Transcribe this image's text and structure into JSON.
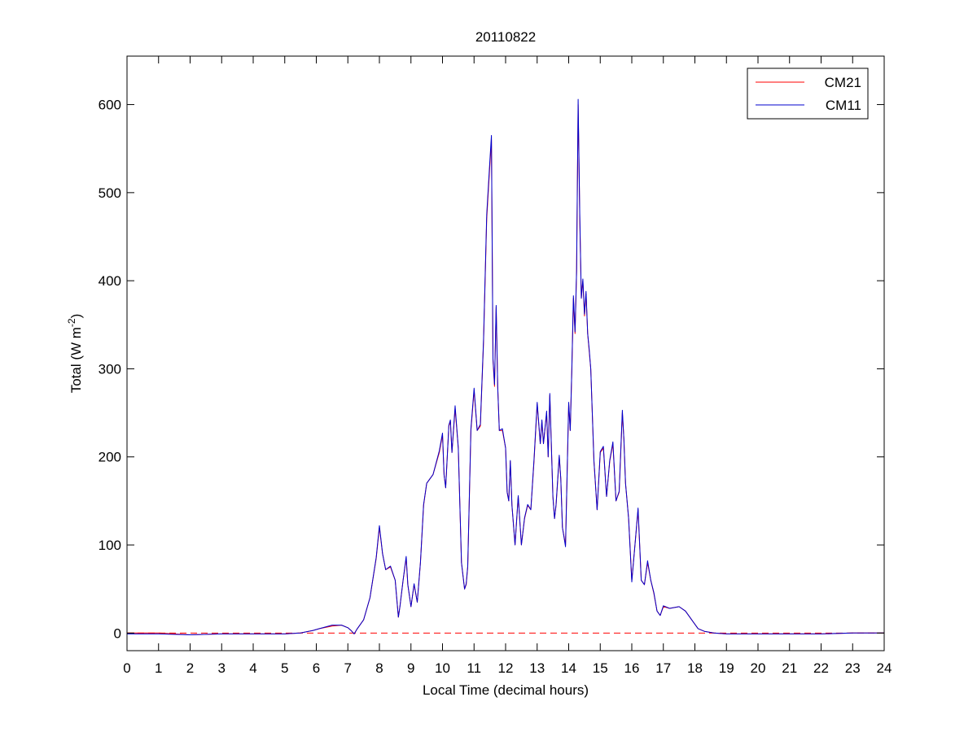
{
  "chart_data": {
    "type": "line",
    "title": "20110822",
    "xlabel": "Local Time (decimal hours)",
    "ylabel": {
      "main": "Total (W m",
      "exponent": "-2",
      "close": ")"
    },
    "xlim": [
      0,
      24
    ],
    "ylim": [
      -20,
      655
    ],
    "x_ticks": [
      0,
      1,
      2,
      3,
      4,
      5,
      6,
      7,
      8,
      9,
      10,
      11,
      12,
      13,
      14,
      15,
      16,
      17,
      18,
      19,
      20,
      21,
      22,
      23,
      24
    ],
    "y_ticks": [
      0,
      100,
      200,
      300,
      400,
      500,
      600
    ],
    "grid": false,
    "legend_position": "top-right",
    "reference_line": {
      "y": 0,
      "style": "dashed",
      "color": "#ff0000"
    },
    "series": [
      {
        "name": "CM21",
        "color": "#ff0000",
        "x": [
          0,
          1,
          2,
          3,
          4,
          5,
          5.5,
          5.9,
          6.1,
          6.5,
          6.8,
          7.0,
          7.1,
          7.2,
          7.3,
          7.5,
          7.7,
          7.9,
          8.0,
          8.1,
          8.2,
          8.35,
          8.5,
          8.6,
          8.65,
          8.75,
          8.85,
          8.9,
          9.0,
          9.1,
          9.2,
          9.3,
          9.4,
          9.5,
          9.7,
          9.9,
          10.0,
          10.05,
          10.1,
          10.2,
          10.25,
          10.3,
          10.4,
          10.5,
          10.6,
          10.7,
          10.75,
          10.8,
          10.9,
          11.0,
          11.1,
          11.2,
          11.3,
          11.4,
          11.5,
          11.55,
          11.6,
          11.65,
          11.7,
          11.75,
          11.8,
          11.9,
          12.0,
          12.05,
          12.1,
          12.15,
          12.2,
          12.3,
          12.4,
          12.5,
          12.6,
          12.7,
          12.8,
          12.9,
          13.0,
          13.1,
          13.15,
          13.2,
          13.3,
          13.35,
          13.4,
          13.5,
          13.55,
          13.6,
          13.7,
          13.75,
          13.8,
          13.9,
          14.0,
          14.05,
          14.1,
          14.15,
          14.2,
          14.25,
          14.3,
          14.35,
          14.4,
          14.45,
          14.5,
          14.55,
          14.6,
          14.65,
          14.7,
          14.8,
          14.9,
          15.0,
          15.1,
          15.2,
          15.3,
          15.4,
          15.5,
          15.6,
          15.7,
          15.75,
          15.8,
          15.9,
          16.0,
          16.1,
          16.2,
          16.3,
          16.4,
          16.5,
          16.6,
          16.7,
          16.8,
          16.9,
          17.0,
          17.2,
          17.5,
          17.7,
          17.9,
          18.1,
          18.3,
          18.6,
          19.0,
          20.0,
          21.0,
          22.0,
          23.0,
          24.0
        ],
        "values": [
          0,
          0,
          -2,
          -1,
          -1,
          -1,
          0,
          3,
          5,
          8,
          9,
          6,
          3,
          -1,
          5,
          15,
          40,
          85,
          120,
          90,
          72,
          75,
          60,
          18,
          30,
          60,
          85,
          55,
          30,
          55,
          35,
          80,
          145,
          170,
          180,
          205,
          225,
          180,
          165,
          235,
          240,
          205,
          255,
          210,
          80,
          50,
          55,
          75,
          230,
          275,
          230,
          235,
          330,
          470,
          530,
          560,
          310,
          280,
          370,
          280,
          230,
          230,
          210,
          160,
          150,
          195,
          145,
          100,
          155,
          100,
          130,
          145,
          140,
          195,
          260,
          215,
          240,
          215,
          250,
          200,
          270,
          155,
          130,
          145,
          200,
          175,
          120,
          100,
          260,
          230,
          300,
          380,
          340,
          410,
          600,
          470,
          380,
          400,
          360,
          385,
          340,
          320,
          300,
          195,
          140,
          205,
          210,
          155,
          195,
          215,
          150,
          160,
          250,
          220,
          170,
          130,
          60,
          100,
          140,
          60,
          55,
          80,
          60,
          45,
          25,
          20,
          30,
          28,
          30,
          25,
          15,
          5,
          2,
          0,
          -1,
          -1,
          -1,
          -1,
          0,
          0
        ]
      },
      {
        "name": "CM11",
        "color": "#0000cc",
        "x": [
          0,
          1,
          2,
          3,
          4,
          5,
          5.5,
          5.9,
          6.1,
          6.5,
          6.8,
          7.0,
          7.1,
          7.2,
          7.3,
          7.5,
          7.7,
          7.9,
          8.0,
          8.1,
          8.2,
          8.35,
          8.5,
          8.6,
          8.65,
          8.75,
          8.85,
          8.9,
          9.0,
          9.1,
          9.2,
          9.3,
          9.4,
          9.5,
          9.7,
          9.9,
          10.0,
          10.05,
          10.1,
          10.2,
          10.25,
          10.3,
          10.4,
          10.5,
          10.6,
          10.7,
          10.75,
          10.8,
          10.9,
          11.0,
          11.1,
          11.2,
          11.3,
          11.4,
          11.5,
          11.55,
          11.6,
          11.65,
          11.7,
          11.75,
          11.8,
          11.9,
          12.0,
          12.05,
          12.1,
          12.15,
          12.2,
          12.3,
          12.4,
          12.5,
          12.6,
          12.7,
          12.8,
          12.9,
          13.0,
          13.1,
          13.15,
          13.2,
          13.3,
          13.35,
          13.4,
          13.5,
          13.55,
          13.6,
          13.7,
          13.75,
          13.8,
          13.9,
          14.0,
          14.05,
          14.1,
          14.15,
          14.2,
          14.25,
          14.3,
          14.35,
          14.4,
          14.45,
          14.5,
          14.55,
          14.6,
          14.65,
          14.7,
          14.8,
          14.9,
          15.0,
          15.1,
          15.2,
          15.3,
          15.4,
          15.5,
          15.6,
          15.7,
          15.75,
          15.8,
          15.9,
          16.0,
          16.1,
          16.2,
          16.3,
          16.4,
          16.5,
          16.6,
          16.7,
          16.8,
          16.9,
          17.0,
          17.2,
          17.5,
          17.7,
          17.9,
          18.1,
          18.3,
          18.6,
          19.0,
          20.0,
          21.0,
          22.0,
          23.0,
          24.0
        ],
        "values": [
          -1,
          -1,
          -2,
          -1,
          -1,
          -1,
          0,
          3,
          5,
          9,
          9,
          6,
          3,
          -1,
          5,
          15,
          40,
          86,
          122,
          90,
          72,
          76,
          60,
          18,
          30,
          60,
          87,
          55,
          30,
          56,
          35,
          80,
          146,
          170,
          180,
          207,
          227,
          180,
          165,
          236,
          242,
          205,
          258,
          210,
          80,
          50,
          56,
          76,
          232,
          278,
          230,
          237,
          333,
          475,
          535,
          565,
          312,
          282,
          372,
          280,
          230,
          232,
          210,
          160,
          150,
          196,
          145,
          100,
          156,
          100,
          131,
          146,
          140,
          197,
          262,
          215,
          242,
          215,
          252,
          200,
          272,
          155,
          130,
          146,
          202,
          175,
          120,
          98,
          262,
          230,
          302,
          383,
          342,
          412,
          606,
          475,
          380,
          402,
          362,
          388,
          340,
          322,
          300,
          196,
          140,
          206,
          212,
          155,
          196,
          217,
          150,
          161,
          253,
          220,
          170,
          130,
          58,
          100,
          142,
          60,
          55,
          82,
          60,
          46,
          25,
          20,
          31,
          28,
          30,
          25,
          15,
          5,
          2,
          0,
          -1,
          -1,
          -1,
          -1,
          0,
          0
        ]
      }
    ]
  }
}
